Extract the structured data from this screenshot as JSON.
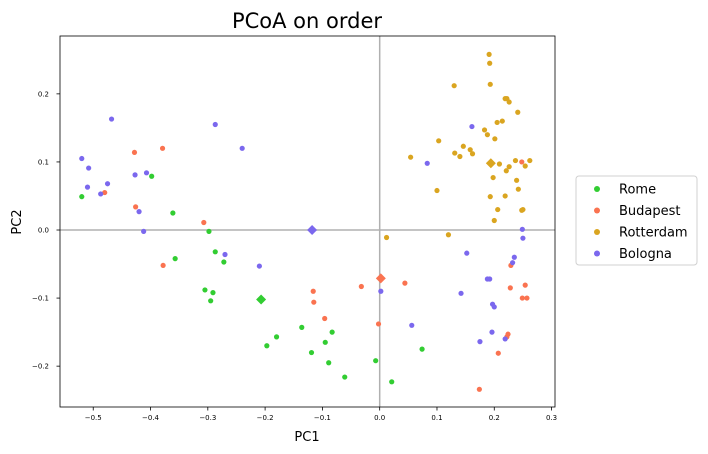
{
  "chart_data": {
    "type": "scatter",
    "title": "PCoA on order",
    "xlabel": "PC1",
    "ylabel": "PC2",
    "xlim": [
      -0.558,
      0.306
    ],
    "ylim": [
      -0.26,
      0.285
    ],
    "xticks": [
      -0.5,
      -0.4,
      -0.3,
      -0.2,
      -0.1,
      0.0,
      0.1,
      0.2,
      0.3
    ],
    "xtick_labels": [
      "−0.5",
      "−0.4",
      "−0.3",
      "−0.2",
      "−0.1",
      "0.0",
      "0.1",
      "0.2",
      "0.3"
    ],
    "yticks": [
      -0.2,
      -0.1,
      0.0,
      0.1,
      0.2
    ],
    "ytick_labels": [
      "−0.2",
      "−0.1",
      "0.0",
      "0.1",
      "0.2"
    ],
    "reference_lines": {
      "x": 0.0,
      "y": 0.0,
      "color": "#b0b0b0"
    },
    "grid": false,
    "legend_position": "outside-right",
    "series": [
      {
        "name": "Rome",
        "color": "#32cd32",
        "centroid": [
          -0.207,
          -0.102
        ],
        "points": [
          [
            -0.52,
            0.049
          ],
          [
            -0.398,
            0.079
          ],
          [
            -0.361,
            0.025
          ],
          [
            -0.357,
            -0.042
          ],
          [
            -0.298,
            -0.002
          ],
          [
            -0.287,
            -0.032
          ],
          [
            -0.272,
            -0.047
          ],
          [
            -0.305,
            -0.088
          ],
          [
            -0.291,
            -0.092
          ],
          [
            -0.295,
            -0.104
          ],
          [
            -0.197,
            -0.17
          ],
          [
            -0.18,
            -0.157
          ],
          [
            -0.136,
            -0.143
          ],
          [
            -0.119,
            -0.18
          ],
          [
            -0.095,
            -0.165
          ],
          [
            -0.083,
            -0.15
          ],
          [
            -0.089,
            -0.195
          ],
          [
            -0.061,
            -0.216
          ],
          [
            -0.007,
            -0.192
          ],
          [
            0.021,
            -0.223
          ],
          [
            0.074,
            -0.175
          ]
        ]
      },
      {
        "name": "Budapest",
        "color": "#fa7350",
        "centroid": [
          0.002,
          -0.071
        ],
        "points": [
          [
            -0.48,
            0.055
          ],
          [
            -0.428,
            0.114
          ],
          [
            -0.379,
            0.12
          ],
          [
            -0.426,
            0.034
          ],
          [
            -0.378,
            -0.052
          ],
          [
            -0.307,
            0.011
          ],
          [
            -0.116,
            -0.09
          ],
          [
            -0.115,
            -0.106
          ],
          [
            -0.096,
            -0.13
          ],
          [
            -0.032,
            -0.083
          ],
          [
            -0.002,
            -0.138
          ],
          [
            0.044,
            -0.078
          ],
          [
            0.174,
            -0.234
          ],
          [
            0.207,
            -0.181
          ],
          [
            0.222,
            -0.157
          ],
          [
            0.224,
            -0.153
          ],
          [
            0.228,
            -0.085
          ],
          [
            0.229,
            -0.052
          ],
          [
            0.249,
            -0.1
          ],
          [
            0.254,
            -0.081
          ],
          [
            0.257,
            -0.1
          ],
          [
            0.248,
            0.1
          ]
        ]
      },
      {
        "name": "Rotterdam",
        "color": "#daa520",
        "centroid": [
          0.194,
          0.098
        ],
        "points": [
          [
            0.13,
            0.212
          ],
          [
            0.191,
            0.258
          ],
          [
            0.192,
            0.245
          ],
          [
            0.193,
            0.214
          ],
          [
            0.205,
            0.158
          ],
          [
            0.214,
            0.16
          ],
          [
            0.219,
            0.193
          ],
          [
            0.222,
            0.193
          ],
          [
            0.226,
            0.188
          ],
          [
            0.241,
            0.173
          ],
          [
            0.054,
            0.107
          ],
          [
            0.103,
            0.131
          ],
          [
            0.131,
            0.113
          ],
          [
            0.14,
            0.108
          ],
          [
            0.146,
            0.123
          ],
          [
            0.158,
            0.118
          ],
          [
            0.162,
            0.112
          ],
          [
            0.183,
            0.147
          ],
          [
            0.188,
            0.14
          ],
          [
            0.201,
            0.134
          ],
          [
            0.209,
            0.097
          ],
          [
            0.221,
            0.087
          ],
          [
            0.237,
            0.102
          ],
          [
            0.239,
            0.073
          ],
          [
            0.242,
            0.06
          ],
          [
            0.254,
            0.094
          ],
          [
            0.262,
            0.102
          ],
          [
            0.1,
            0.058
          ],
          [
            0.198,
            0.077
          ],
          [
            0.193,
            0.049
          ],
          [
            0.206,
            0.03
          ],
          [
            0.219,
            0.05
          ],
          [
            0.226,
            0.093
          ],
          [
            0.2,
            0.014
          ],
          [
            0.248,
            0.029
          ],
          [
            0.25,
            0.03
          ],
          [
            0.12,
            -0.007
          ],
          [
            0.012,
            -0.011
          ]
        ]
      },
      {
        "name": "Bologna",
        "color": "#7b68ee",
        "centroid": [
          -0.118,
          0.0
        ],
        "points": [
          [
            -0.468,
            0.163
          ],
          [
            -0.287,
            0.155
          ],
          [
            -0.24,
            0.12
          ],
          [
            -0.52,
            0.105
          ],
          [
            -0.508,
            0.091
          ],
          [
            -0.51,
            0.063
          ],
          [
            -0.487,
            0.053
          ],
          [
            -0.475,
            0.068
          ],
          [
            -0.427,
            0.081
          ],
          [
            -0.407,
            0.084
          ],
          [
            -0.42,
            0.027
          ],
          [
            -0.412,
            -0.002
          ],
          [
            -0.27,
            -0.036
          ],
          [
            -0.21,
            -0.053
          ],
          [
            0.002,
            -0.09
          ],
          [
            0.056,
            -0.14
          ],
          [
            0.083,
            0.098
          ],
          [
            0.161,
            0.152
          ],
          [
            0.142,
            -0.093
          ],
          [
            0.152,
            -0.034
          ],
          [
            0.188,
            -0.072
          ],
          [
            0.192,
            -0.072
          ],
          [
            0.197,
            -0.109
          ],
          [
            0.2,
            -0.113
          ],
          [
            0.196,
            -0.15
          ],
          [
            0.175,
            -0.164
          ],
          [
            0.219,
            -0.16
          ],
          [
            0.232,
            -0.048
          ],
          [
            0.235,
            -0.04
          ],
          [
            0.249,
            0.001
          ],
          [
            0.25,
            -0.012
          ]
        ]
      }
    ]
  }
}
